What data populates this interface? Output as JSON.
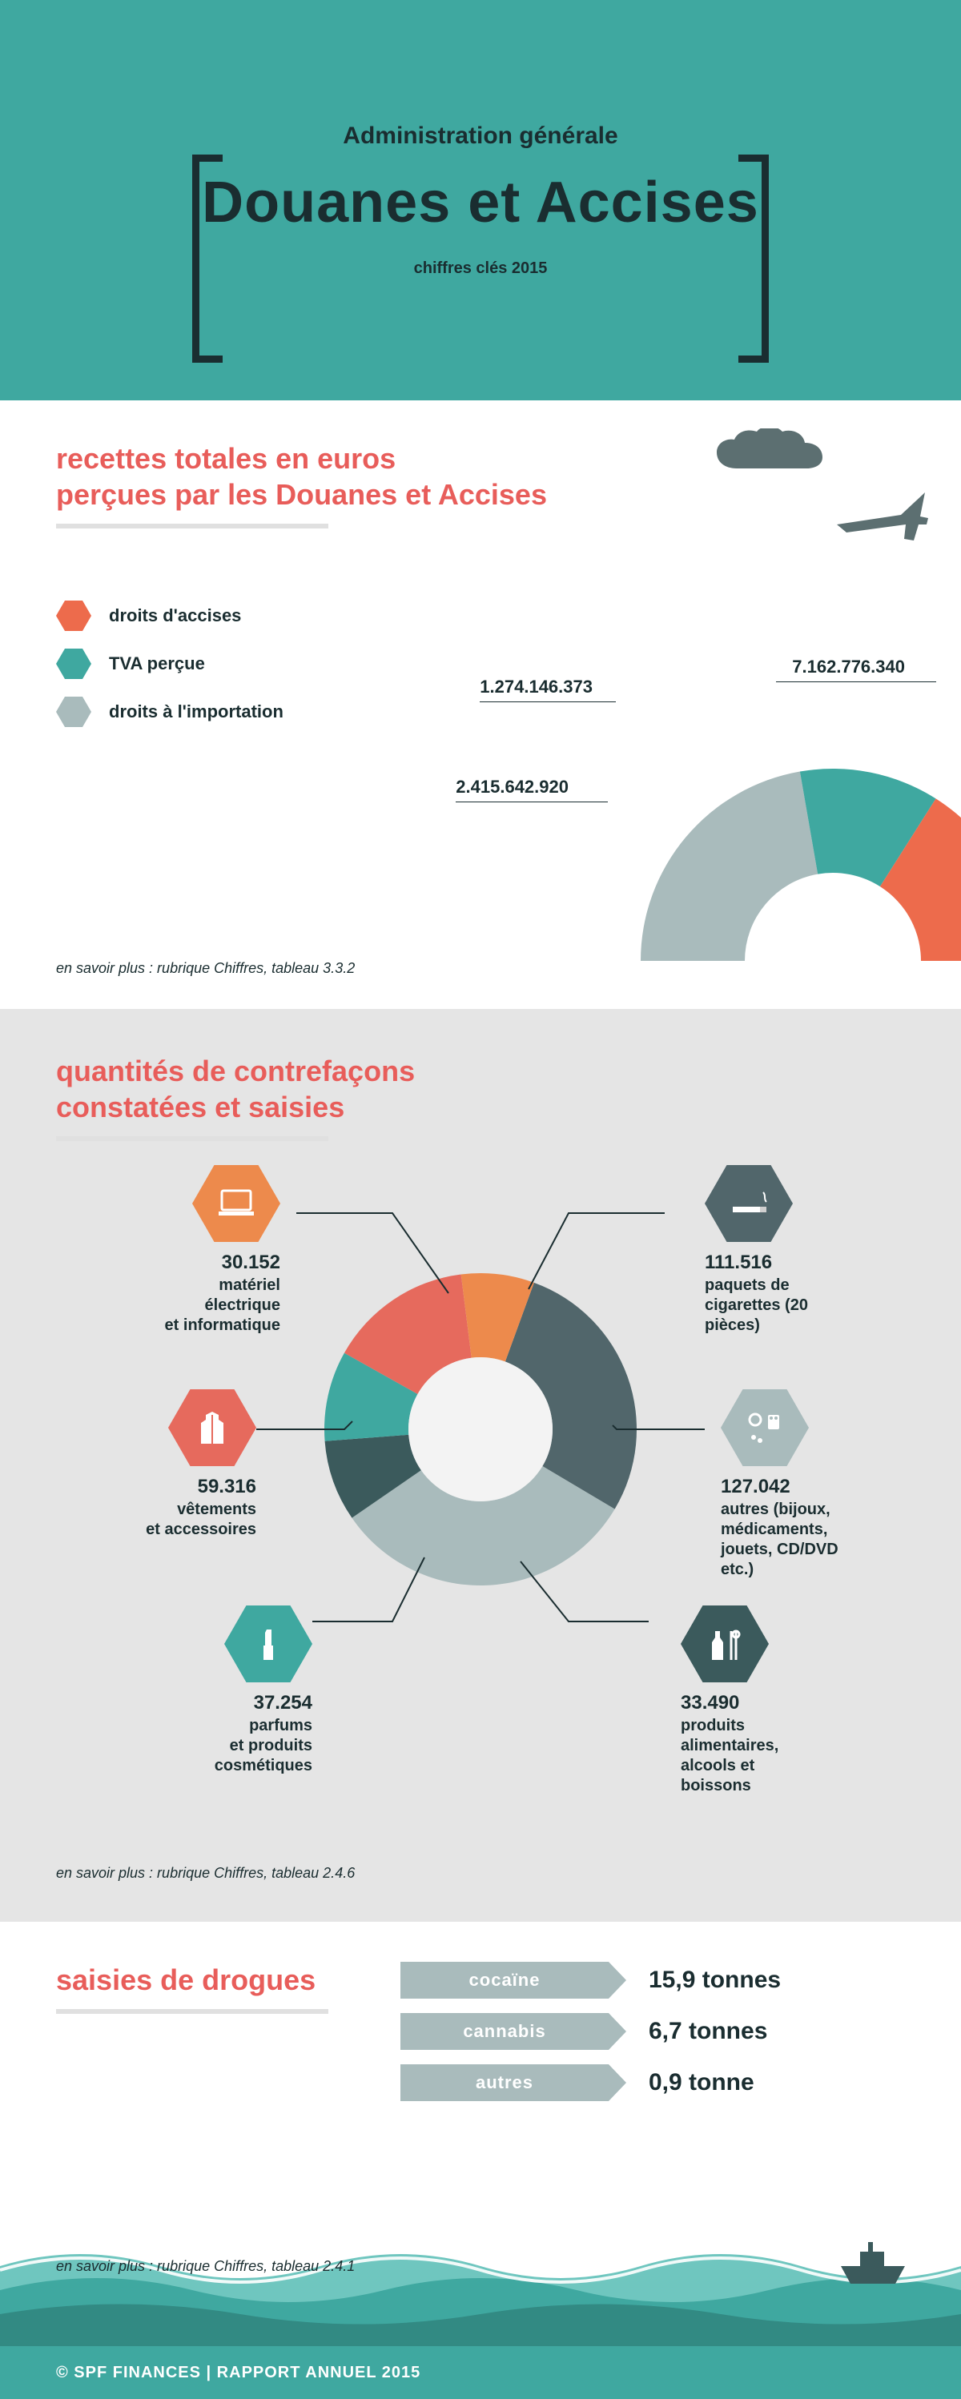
{
  "header": {
    "supertitle": "Administration générale",
    "title": "Douanes et Accises",
    "subtitle": "chiffres clés 2015",
    "bg_color": "#3fa8a0",
    "text_color": "#1a2d30"
  },
  "revenues": {
    "title_line1": "recettes totales en euros",
    "title_line2": "perçues par les Douanes et Accises",
    "title_color": "#e85d5a",
    "underline_color": "#e0e0e0",
    "legend": [
      {
        "label": "droits d'accises",
        "color": "#ed6b4c"
      },
      {
        "label": "TVA perçue",
        "color": "#3fa8a0"
      },
      {
        "label": "droits à l'importation",
        "color": "#a9bbbc"
      }
    ],
    "donut": {
      "type": "donut-half",
      "values": [
        7162776340,
        1274146373,
        2415642920
      ],
      "labels": [
        "7.162.776.340",
        "1.274.146.373",
        "2.415.642.920"
      ],
      "colors": [
        "#ed6b4c",
        "#3fa8a0",
        "#a9bbbc"
      ],
      "inner_radius": 110,
      "outer_radius": 240
    },
    "footnote": "en savoir plus : rubrique Chiffres, tableau 3.3.2",
    "plane_color": "#5c6f71"
  },
  "counterfeit": {
    "title_line1": "quantités de contrefaçons",
    "title_line2": "constatées et saisies",
    "bg_color": "#e5e5e5",
    "donut": {
      "type": "donut",
      "inner_radius": 90,
      "outer_radius": 195,
      "inner_color": "#f3f3f3",
      "segments": [
        {
          "value": 111516,
          "color": "#51666b"
        },
        {
          "value": 127042,
          "color": "#a9bbbc"
        },
        {
          "value": 33490,
          "color": "#3b5a5c"
        },
        {
          "value": 37254,
          "color": "#3fa8a0"
        },
        {
          "value": 59316,
          "color": "#e66a5d"
        },
        {
          "value": 30152,
          "color": "#ed8a4c"
        }
      ]
    },
    "categories": [
      {
        "value": "30.152",
        "label": "matériel\nélectrique\net informatique",
        "hex_color": "#ed8a4c",
        "icon": "laptop"
      },
      {
        "value": "111.516",
        "label": "paquets de\ncigarettes (20\npièces)",
        "hex_color": "#51666b",
        "icon": "cigarette"
      },
      {
        "value": "59.316",
        "label": "vêtements\net accessoires",
        "hex_color": "#e66a5d",
        "icon": "coat"
      },
      {
        "value": "127.042",
        "label": "autres (bijoux,\nmédicaments,\njouets, CD/DVD\netc.)",
        "hex_color": "#a9bbbc",
        "icon": "misc"
      },
      {
        "value": "37.254",
        "label": "parfums\net produits\ncosmétiques",
        "hex_color": "#3fa8a0",
        "icon": "lipstick"
      },
      {
        "value": "33.490",
        "label": "produits\nalimentaires,\nalcools et\nboissons",
        "hex_color": "#3b5a5c",
        "icon": "food"
      }
    ],
    "footnote": "en savoir plus : rubrique Chiffres, tableau 2.4.6"
  },
  "drugs": {
    "title": "saisies de drogues",
    "label_bg": "#a9bbbc",
    "rows": [
      {
        "label": "cocaïne",
        "value": "15,9 tonnes"
      },
      {
        "label": "cannabis",
        "value": "6,7 tonnes"
      },
      {
        "label": "autres",
        "value": "0,9 tonne"
      }
    ],
    "footnote": "en savoir plus : rubrique Chiffres, tableau 2.4.1",
    "sea_colors": {
      "light": "#6fc6bf",
      "mid": "#3fa8a0",
      "dark": "#328a83",
      "foam": "#ffffff"
    }
  },
  "footer": {
    "text": "© SPF FINANCES | RAPPORT ANNUEL 2015",
    "bg": "#3fa8a0"
  }
}
